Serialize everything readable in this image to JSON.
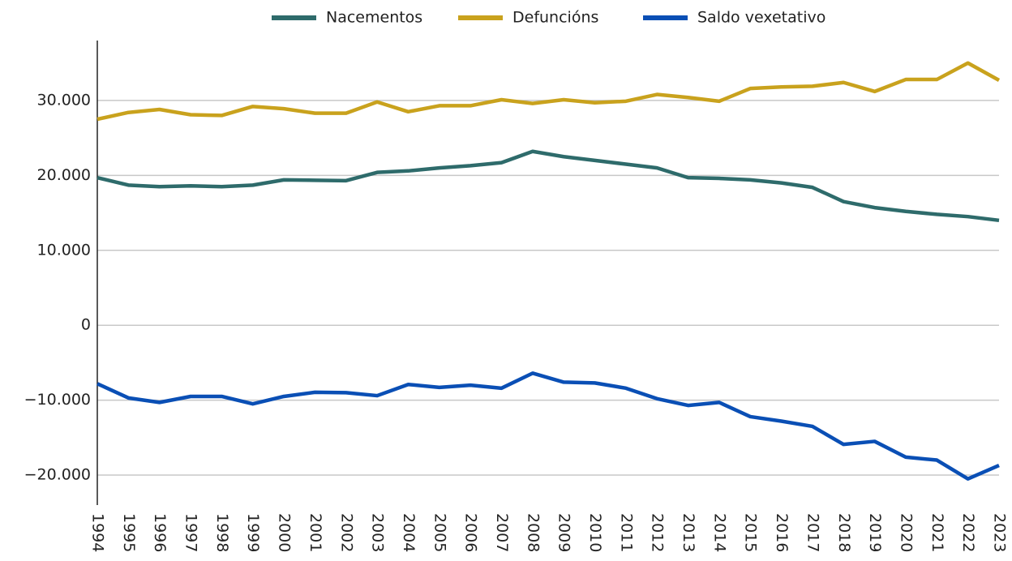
{
  "chart_data": {
    "type": "line",
    "categories": [
      "1994",
      "1995",
      "1996",
      "1997",
      "1998",
      "1999",
      "2000",
      "2001",
      "2002",
      "2003",
      "2004",
      "2005",
      "2006",
      "2007",
      "2008",
      "2009",
      "2010",
      "2011",
      "2012",
      "2013",
      "2014",
      "2015",
      "2016",
      "2017",
      "2018",
      "2019",
      "2020",
      "2021",
      "2022",
      "2023"
    ],
    "series": [
      {
        "name": "Nacementos",
        "color": "#2e6b6b",
        "values": [
          19700,
          18700,
          18500,
          18600,
          18500,
          18700,
          19400,
          19350,
          19300,
          20400,
          20600,
          21000,
          21300,
          21700,
          23200,
          22500,
          22000,
          21500,
          21000,
          19700,
          19600,
          19400,
          19000,
          18400,
          16500,
          15700,
          15200,
          14800,
          14500,
          14000
        ]
      },
      {
        "name": "Defuncións",
        "color": "#c9a21d",
        "values": [
          27500,
          28400,
          28800,
          28100,
          28000,
          29200,
          28900,
          28300,
          28300,
          29800,
          28500,
          29300,
          29300,
          30100,
          29600,
          30100,
          29700,
          29900,
          30800,
          30400,
          29900,
          31600,
          31800,
          31900,
          32400,
          31200,
          32800,
          32800,
          35000,
          32700
        ]
      },
      {
        "name": "Saldo vexetativo",
        "color": "#0a4fb5",
        "values": [
          -7800,
          -9700,
          -10300,
          -9500,
          -9500,
          -10500,
          -9500,
          -8950,
          -9000,
          -9400,
          -7900,
          -8300,
          -8000,
          -8400,
          -6400,
          -7600,
          -7700,
          -8400,
          -9800,
          -10700,
          -10300,
          -12200,
          -12800,
          -13500,
          -15900,
          -15500,
          -17600,
          -18000,
          -20500,
          -18700
        ]
      }
    ],
    "ylim": [
      -24000,
      38000
    ],
    "yticks": [
      {
        "value": -20000,
        "label": "−20.000"
      },
      {
        "value": -10000,
        "label": "−10.000"
      },
      0,
      {
        "value": 10000,
        "label": "10.000"
      },
      {
        "value": 20000,
        "label": "20.000"
      },
      {
        "value": 30000,
        "label": "30.000"
      }
    ],
    "grid": true,
    "legend": "top"
  }
}
